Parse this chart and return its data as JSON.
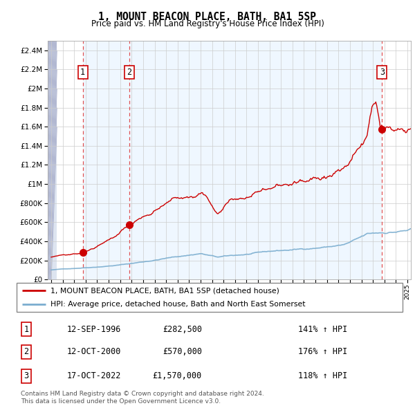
{
  "title": "1, MOUNT BEACON PLACE, BATH, BA1 5SP",
  "subtitle": "Price paid vs. HM Land Registry's House Price Index (HPI)",
  "legend_line1": "1, MOUNT BEACON PLACE, BATH, BA1 5SP (detached house)",
  "legend_line2": "HPI: Average price, detached house, Bath and North East Somerset",
  "footnote1": "Contains HM Land Registry data © Crown copyright and database right 2024.",
  "footnote2": "This data is licensed under the Open Government Licence v3.0.",
  "sales": [
    {
      "num": 1,
      "date": "12-SEP-1996",
      "price": "£282,500",
      "hpi": "141% ↑ HPI",
      "year": 1996.75
    },
    {
      "num": 2,
      "date": "12-OCT-2000",
      "price": "£570,000",
      "hpi": "176% ↑ HPI",
      "year": 2000.79
    },
    {
      "num": 3,
      "date": "17-OCT-2022",
      "price": "£1,570,000",
      "hpi": "118% ↑ HPI",
      "year": 2022.79
    }
  ],
  "sale_prices": [
    282500,
    570000,
    1570000
  ],
  "sale_years": [
    1996.75,
    2000.79,
    2022.79
  ],
  "red_line_color": "#cc0000",
  "blue_line_color": "#7aadcf",
  "bg_color": "#ffffff",
  "grid_color": "#cccccc",
  "xmin": 1993.7,
  "xmax": 2025.3,
  "ymin": 0,
  "ymax": 2500000,
  "yticks": [
    0,
    200000,
    400000,
    600000,
    800000,
    1000000,
    1200000,
    1400000,
    1600000,
    1800000,
    2000000,
    2200000,
    2400000
  ],
  "shade_color": "#ddeeff",
  "shade_alpha": 0.45,
  "hatch_xmax": 1994.5
}
